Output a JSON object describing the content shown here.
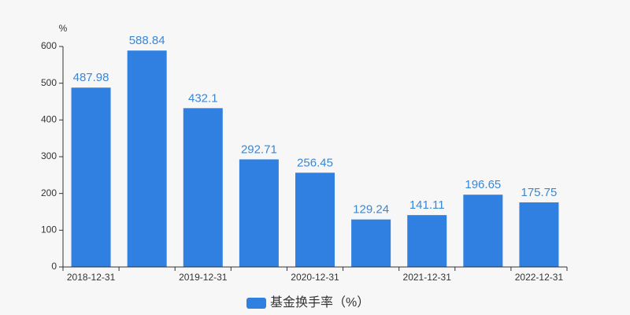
{
  "chart_data": {
    "type": "bar",
    "y_label": "%",
    "categories": [
      "2018-12-31",
      null,
      "2019-12-31",
      null,
      "2020-12-31",
      null,
      "2021-12-31",
      null,
      "2022-12-31"
    ],
    "series": [
      {
        "name": "基金换手率（%）",
        "color": "#2f80e0",
        "values": [
          487.98,
          588.84,
          432.1,
          292.71,
          256.45,
          129.24,
          141.11,
          196.65,
          175.75
        ]
      }
    ],
    "ylim": [
      0,
      600
    ],
    "yticks": [
      0,
      100,
      200,
      300,
      400,
      500,
      600
    ],
    "grid": false
  }
}
